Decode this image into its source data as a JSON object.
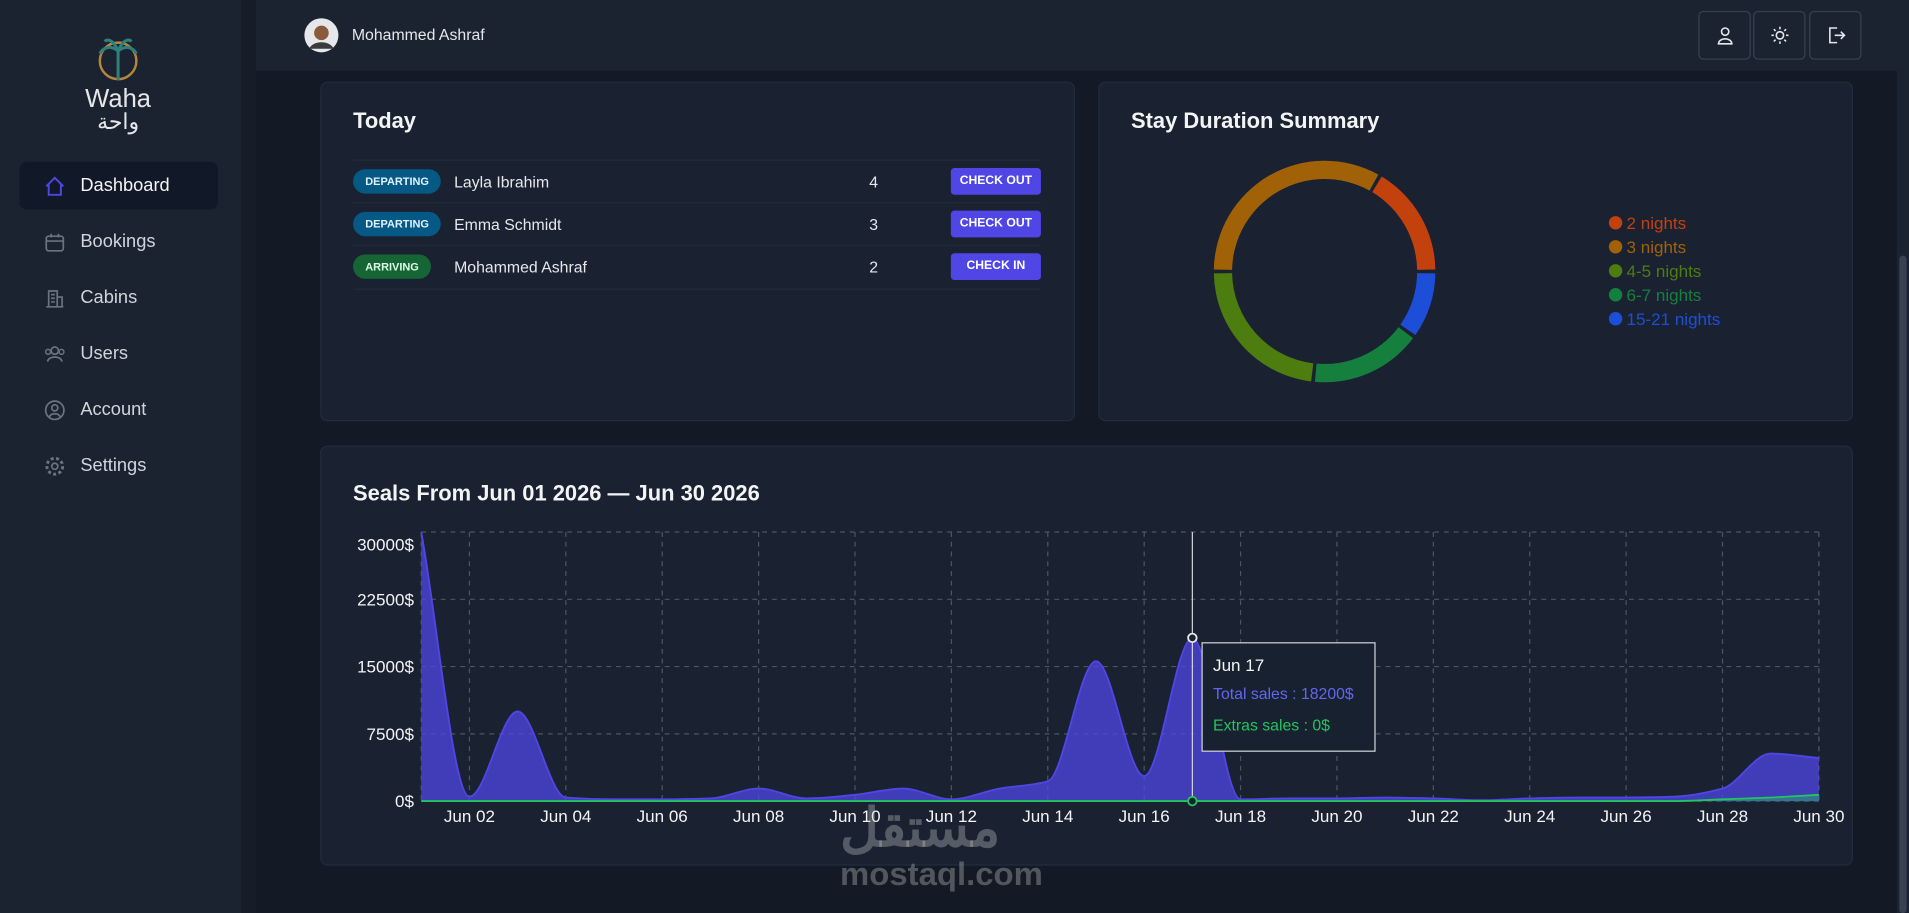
{
  "brand": {
    "name": "Waha",
    "name_ar": "واحة"
  },
  "sidebar": {
    "items": [
      "Dashboard",
      "Bookings",
      "Cabins",
      "Users",
      "Account",
      "Settings"
    ]
  },
  "header": {
    "user": "Mohammed Ashraf"
  },
  "today": {
    "title": "Today",
    "rows": [
      {
        "status": "DEPARTING",
        "guest": "Layla Ibrahim",
        "nights": 4,
        "action": "CHECK OUT"
      },
      {
        "status": "DEPARTING",
        "guest": "Emma Schmidt",
        "nights": 3,
        "action": "CHECK OUT"
      },
      {
        "status": "ARRIVING",
        "guest": "Mohammed Ashraf",
        "nights": 2,
        "action": "CHECK IN"
      }
    ]
  },
  "chart_data": [
    {
      "type": "donut",
      "title": "Stay Duration Summary",
      "categories": [
        "2 nights",
        "3 nights",
        "4-5 nights",
        "6-7 nights",
        "15-21 nights"
      ],
      "values": [
        5,
        10,
        7,
        5,
        3
      ],
      "colors": [
        "#c2410c",
        "#a16207",
        "#4d7c0f",
        "#15803d",
        "#1d4ed8"
      ],
      "legend": "right"
    },
    {
      "type": "area",
      "title": "Seals From Jun 01 2026 — Jun 30 2026",
      "categories": [
        null,
        "Jun 02",
        null,
        "Jun 04",
        null,
        "Jun 06",
        null,
        "Jun 08",
        null,
        "Jun 10",
        null,
        "Jun 12",
        null,
        "Jun 14",
        null,
        "Jun 16",
        null,
        "Jun 18",
        null,
        "Jun 20",
        null,
        "Jun 22",
        null,
        "Jun 24",
        null,
        "Jun 26",
        null,
        "Jun 28",
        null,
        "Jun 30"
      ],
      "series": [
        {
          "color": "#4f46e5",
          "values": [
            30000,
            500,
            10000,
            400,
            200,
            200,
            300,
            1400,
            300,
            700,
            1400,
            200,
            1400,
            2200,
            15600,
            2800,
            18200,
            200,
            300,
            300,
            400,
            300,
            100,
            300,
            400,
            400,
            500,
            1400,
            5300,
            4800
          ]
        },
        {
          "color": "#22c55e",
          "values": [
            0,
            0,
            0,
            0,
            0,
            0,
            0,
            0,
            0,
            0,
            0,
            0,
            0,
            0,
            0,
            0,
            0,
            0,
            0,
            0,
            0,
            0,
            0,
            0,
            0,
            0,
            0,
            200,
            400,
            700
          ]
        }
      ],
      "ylim": [
        0,
        30000
      ],
      "yticks": [
        {
          "value": 0,
          "label": "0$"
        },
        {
          "value": 7500,
          "label": "7500$"
        },
        {
          "value": 15000,
          "label": "15000$"
        },
        {
          "value": 22500,
          "label": "22500$"
        },
        {
          "value": 30000,
          "label": "30000$"
        }
      ],
      "grid": true,
      "tooltip": {
        "title": "Jun 17",
        "lines": [
          "Total sales : 18200$",
          "Extras sales : 0$"
        ]
      }
    }
  ],
  "watermark": {
    "ar": "مستقل",
    "en": "mostaql.com"
  }
}
